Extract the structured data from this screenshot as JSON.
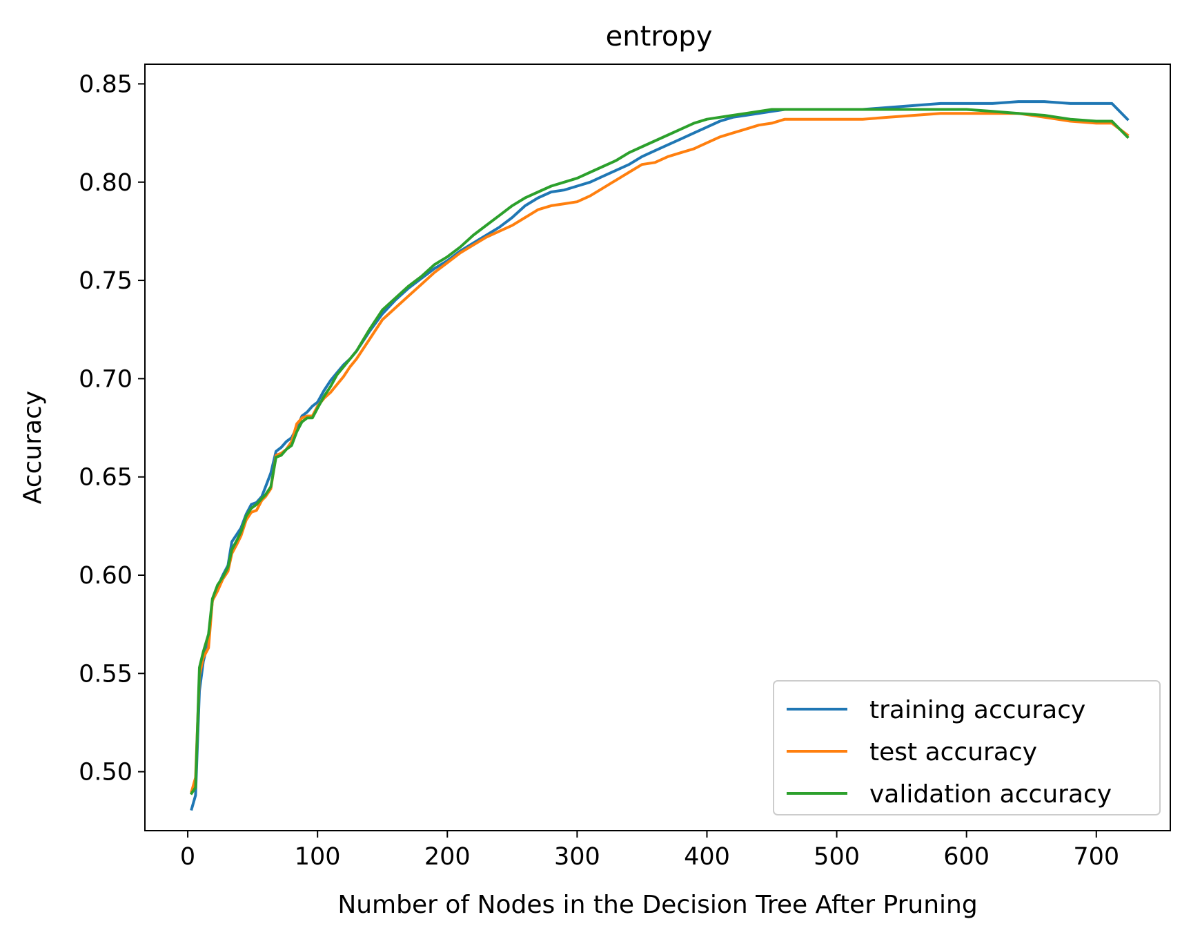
{
  "chart_data": {
    "type": "line",
    "title": "entropy",
    "xlabel": "Number of Nodes in the Decision Tree After Pruning",
    "ylabel": "Accuracy",
    "xlim": [
      -33,
      757
    ],
    "ylim": [
      0.47,
      0.86
    ],
    "x_ticks": [
      0,
      100,
      200,
      300,
      400,
      500,
      600,
      700
    ],
    "x_tick_labels": [
      "0",
      "100",
      "200",
      "300",
      "400",
      "500",
      "600",
      "700"
    ],
    "y_ticks": [
      0.5,
      0.55,
      0.6,
      0.65,
      0.7,
      0.75,
      0.8,
      0.85
    ],
    "y_tick_labels": [
      "0.50",
      "0.55",
      "0.60",
      "0.65",
      "0.70",
      "0.75",
      "0.80",
      "0.85"
    ],
    "grid": false,
    "legend_position": "lower-right",
    "series": [
      {
        "name": "training accuracy",
        "color": "#1f77b4",
        "x": [
          3,
          6,
          9,
          12,
          16,
          19,
          23,
          27,
          31,
          34,
          38,
          41,
          45,
          49,
          53,
          57,
          60,
          64,
          68,
          72,
          76,
          80,
          84,
          88,
          92,
          96,
          100,
          105,
          110,
          115,
          120,
          125,
          130,
          140,
          150,
          160,
          170,
          180,
          190,
          200,
          210,
          220,
          230,
          240,
          250,
          260,
          270,
          280,
          290,
          300,
          310,
          320,
          330,
          340,
          350,
          360,
          370,
          380,
          390,
          400,
          410,
          420,
          430,
          440,
          450,
          460,
          480,
          500,
          520,
          540,
          560,
          580,
          600,
          620,
          640,
          660,
          680,
          700,
          712,
          724
        ],
        "y": [
          0.481,
          0.488,
          0.541,
          0.556,
          0.567,
          0.587,
          0.594,
          0.6,
          0.605,
          0.617,
          0.621,
          0.624,
          0.631,
          0.636,
          0.637,
          0.64,
          0.645,
          0.652,
          0.663,
          0.665,
          0.668,
          0.67,
          0.675,
          0.681,
          0.683,
          0.686,
          0.688,
          0.694,
          0.699,
          0.703,
          0.707,
          0.71,
          0.714,
          0.724,
          0.733,
          0.74,
          0.746,
          0.751,
          0.756,
          0.76,
          0.765,
          0.769,
          0.773,
          0.777,
          0.782,
          0.788,
          0.792,
          0.795,
          0.796,
          0.798,
          0.8,
          0.803,
          0.806,
          0.809,
          0.813,
          0.816,
          0.819,
          0.822,
          0.825,
          0.828,
          0.831,
          0.833,
          0.834,
          0.835,
          0.836,
          0.837,
          0.837,
          0.837,
          0.837,
          0.838,
          0.839,
          0.84,
          0.84,
          0.84,
          0.841,
          0.841,
          0.84,
          0.84,
          0.84,
          0.832
        ]
      },
      {
        "name": "test accuracy",
        "color": "#ff7f0e",
        "x": [
          3,
          6,
          9,
          12,
          16,
          19,
          23,
          27,
          31,
          34,
          38,
          41,
          45,
          49,
          53,
          57,
          60,
          64,
          68,
          72,
          76,
          80,
          84,
          88,
          92,
          96,
          100,
          105,
          110,
          115,
          120,
          125,
          130,
          140,
          150,
          160,
          170,
          180,
          190,
          200,
          210,
          220,
          230,
          240,
          250,
          260,
          270,
          280,
          290,
          300,
          310,
          320,
          330,
          340,
          350,
          360,
          370,
          380,
          390,
          400,
          410,
          420,
          430,
          440,
          450,
          460,
          480,
          500,
          520,
          540,
          560,
          580,
          600,
          620,
          640,
          660,
          680,
          700,
          712,
          724
        ],
        "y": [
          0.49,
          0.497,
          0.549,
          0.558,
          0.563,
          0.587,
          0.592,
          0.598,
          0.602,
          0.611,
          0.616,
          0.62,
          0.628,
          0.632,
          0.633,
          0.638,
          0.64,
          0.644,
          0.661,
          0.662,
          0.664,
          0.668,
          0.677,
          0.68,
          0.681,
          0.681,
          0.686,
          0.69,
          0.693,
          0.697,
          0.701,
          0.706,
          0.71,
          0.72,
          0.73,
          0.736,
          0.742,
          0.748,
          0.754,
          0.759,
          0.764,
          0.768,
          0.772,
          0.775,
          0.778,
          0.782,
          0.786,
          0.788,
          0.789,
          0.79,
          0.793,
          0.797,
          0.801,
          0.805,
          0.809,
          0.81,
          0.813,
          0.815,
          0.817,
          0.82,
          0.823,
          0.825,
          0.827,
          0.829,
          0.83,
          0.832,
          0.832,
          0.832,
          0.832,
          0.833,
          0.834,
          0.835,
          0.835,
          0.835,
          0.835,
          0.833,
          0.831,
          0.83,
          0.83,
          0.824
        ]
      },
      {
        "name": "validation accuracy",
        "color": "#2ca02c",
        "x": [
          3,
          6,
          9,
          12,
          16,
          19,
          23,
          27,
          31,
          34,
          38,
          41,
          45,
          49,
          53,
          57,
          60,
          64,
          68,
          72,
          76,
          80,
          84,
          88,
          92,
          96,
          100,
          105,
          110,
          115,
          120,
          125,
          130,
          140,
          150,
          160,
          170,
          180,
          190,
          200,
          210,
          220,
          230,
          240,
          250,
          260,
          270,
          280,
          290,
          300,
          310,
          320,
          330,
          340,
          350,
          360,
          370,
          380,
          390,
          400,
          410,
          420,
          430,
          440,
          450,
          460,
          480,
          500,
          520,
          540,
          560,
          580,
          600,
          620,
          640,
          660,
          680,
          700,
          712,
          724
        ],
        "y": [
          0.489,
          0.492,
          0.553,
          0.561,
          0.57,
          0.588,
          0.595,
          0.599,
          0.604,
          0.613,
          0.618,
          0.622,
          0.63,
          0.634,
          0.636,
          0.639,
          0.641,
          0.645,
          0.66,
          0.661,
          0.664,
          0.666,
          0.673,
          0.678,
          0.68,
          0.68,
          0.685,
          0.691,
          0.696,
          0.702,
          0.706,
          0.71,
          0.714,
          0.725,
          0.735,
          0.741,
          0.747,
          0.752,
          0.758,
          0.762,
          0.767,
          0.773,
          0.778,
          0.783,
          0.788,
          0.792,
          0.795,
          0.798,
          0.8,
          0.802,
          0.805,
          0.808,
          0.811,
          0.815,
          0.818,
          0.821,
          0.824,
          0.827,
          0.83,
          0.832,
          0.833,
          0.834,
          0.835,
          0.836,
          0.837,
          0.837,
          0.837,
          0.837,
          0.837,
          0.837,
          0.837,
          0.837,
          0.837,
          0.836,
          0.835,
          0.834,
          0.832,
          0.831,
          0.831,
          0.823
        ]
      }
    ]
  }
}
